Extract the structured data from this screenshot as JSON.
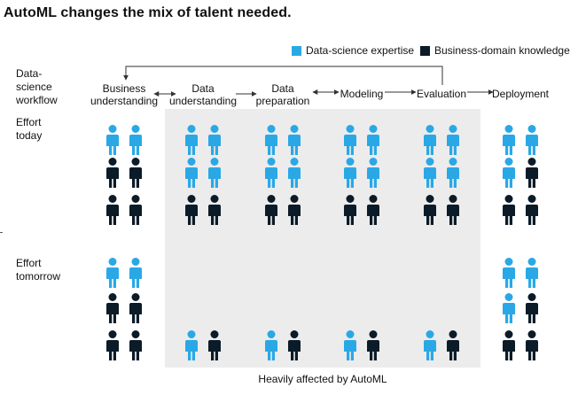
{
  "title": "AutoML changes the mix of talent needed.",
  "legend": {
    "data_science": "Data-science expertise",
    "business_domain": "Business-domain knowledge"
  },
  "colors": {
    "data_science": "#2aa8e6",
    "business_domain": "#0b1b28",
    "shade": "#ececec",
    "arrow": "#333333"
  },
  "workflow_label": [
    "Data-",
    "science",
    "workflow"
  ],
  "effort_today_label": [
    "Effort",
    "today"
  ],
  "effort_tomorrow_label": [
    "Effort",
    "tomorrow"
  ],
  "shaded_caption": "Heavily affected by AutoML",
  "steps": [
    {
      "lines": [
        "Business",
        "understanding"
      ],
      "today": [
        [
          "data",
          "data"
        ],
        [
          "business",
          "business"
        ],
        [
          "business",
          "business"
        ]
      ],
      "tomorrow": [
        [
          "data",
          "data"
        ],
        [
          "business",
          "business"
        ],
        [
          "business",
          "business"
        ]
      ]
    },
    {
      "lines": [
        "Data",
        "understanding"
      ],
      "today": [
        [
          "data",
          "data"
        ],
        [
          "data",
          "data"
        ],
        [
          "business",
          "business"
        ]
      ],
      "tomorrow": [
        [
          "data",
          "business"
        ]
      ]
    },
    {
      "lines": [
        "Data",
        "preparation"
      ],
      "today": [
        [
          "data",
          "data"
        ],
        [
          "data",
          "data"
        ],
        [
          "business",
          "business"
        ]
      ],
      "tomorrow": [
        [
          "data",
          "business"
        ]
      ]
    },
    {
      "lines": [
        "Modeling"
      ],
      "today": [
        [
          "data",
          "data"
        ],
        [
          "data",
          "data"
        ],
        [
          "business",
          "business"
        ]
      ],
      "tomorrow": [
        [
          "data",
          "business"
        ]
      ]
    },
    {
      "lines": [
        "Evaluation"
      ],
      "today": [
        [
          "data",
          "data"
        ],
        [
          "data",
          "data"
        ],
        [
          "business",
          "business"
        ]
      ],
      "tomorrow": [
        [
          "data",
          "business"
        ]
      ]
    },
    {
      "lines": [
        "Deployment"
      ],
      "today": [
        [
          "data",
          "data"
        ],
        [
          "data",
          "business"
        ],
        [
          "business",
          "business"
        ]
      ],
      "tomorrow": [
        [
          "data",
          "data"
        ],
        [
          "data",
          "business"
        ],
        [
          "business",
          "business"
        ]
      ]
    }
  ]
}
